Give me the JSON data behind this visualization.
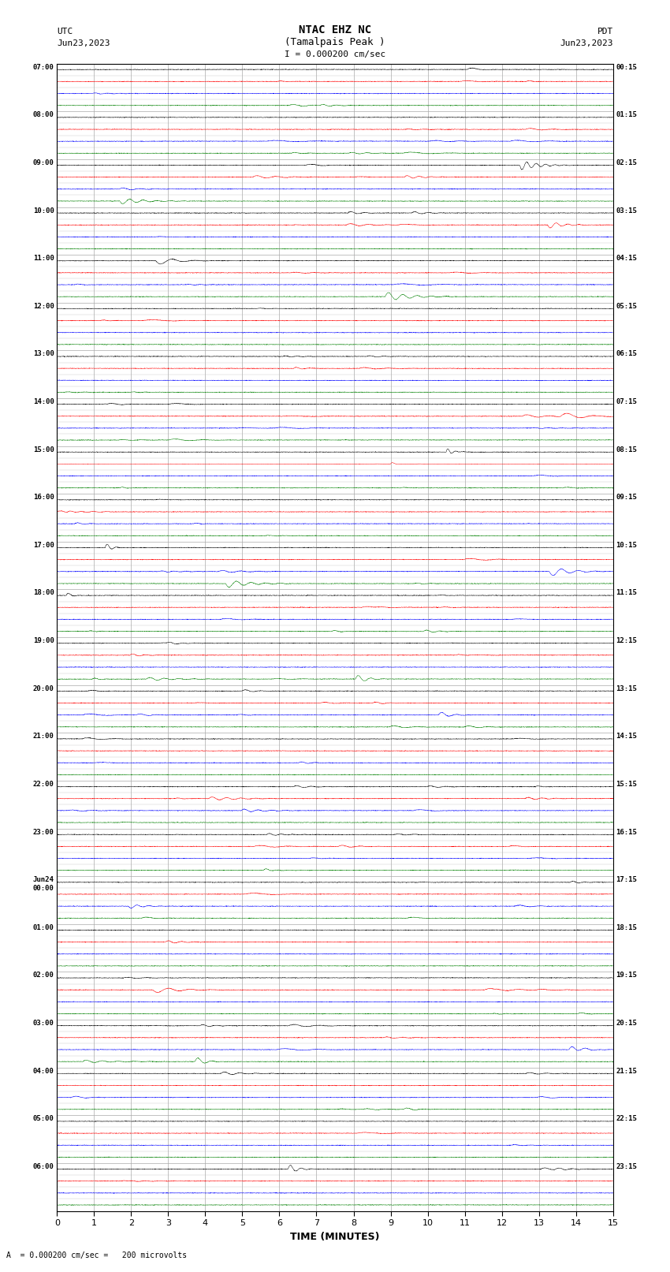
{
  "title_line1": "NTAC EHZ NC",
  "title_line2": "(Tamalpais Peak )",
  "title_line3": "I = 0.000200 cm/sec",
  "left_header_line1": "UTC",
  "left_header_line2": "Jun23,2023",
  "right_header_line1": "PDT",
  "right_header_line2": "Jun23,2023",
  "xlabel": "TIME (MINUTES)",
  "footer": "A  = 0.000200 cm/sec =   200 microvolts",
  "time_min": 0,
  "time_max": 15,
  "xticks": [
    0,
    1,
    2,
    3,
    4,
    5,
    6,
    7,
    8,
    9,
    10,
    11,
    12,
    13,
    14,
    15
  ],
  "figsize": [
    8.5,
    16.13
  ],
  "dpi": 100,
  "num_rows": 96,
  "colors_cycle": [
    "black",
    "red",
    "blue",
    "green"
  ],
  "left_labels": [
    "07:00",
    "",
    "",
    "",
    "08:00",
    "",
    "",
    "",
    "09:00",
    "",
    "",
    "",
    "10:00",
    "",
    "",
    "",
    "11:00",
    "",
    "",
    "",
    "12:00",
    "",
    "",
    "",
    "13:00",
    "",
    "",
    "",
    "14:00",
    "",
    "",
    "",
    "15:00",
    "",
    "",
    "",
    "16:00",
    "",
    "",
    "",
    "17:00",
    "",
    "",
    "",
    "18:00",
    "",
    "",
    "",
    "19:00",
    "",
    "",
    "",
    "20:00",
    "",
    "",
    "",
    "21:00",
    "",
    "",
    "",
    "22:00",
    "",
    "",
    "",
    "23:00",
    "",
    "",
    "",
    "Jun24\n00:00",
    "",
    "",
    "",
    "01:00",
    "",
    "",
    "",
    "02:00",
    "",
    "",
    "",
    "03:00",
    "",
    "",
    "",
    "04:00",
    "",
    "",
    "",
    "05:00",
    "",
    "",
    "",
    "06:00",
    "",
    "",
    ""
  ],
  "right_labels": [
    "00:15",
    "",
    "",
    "",
    "01:15",
    "",
    "",
    "",
    "02:15",
    "",
    "",
    "",
    "03:15",
    "",
    "",
    "",
    "04:15",
    "",
    "",
    "",
    "05:15",
    "",
    "",
    "",
    "06:15",
    "",
    "",
    "",
    "07:15",
    "",
    "",
    "",
    "08:15",
    "",
    "",
    "",
    "09:15",
    "",
    "",
    "",
    "10:15",
    "",
    "",
    "",
    "11:15",
    "",
    "",
    "",
    "12:15",
    "",
    "",
    "",
    "13:15",
    "",
    "",
    "",
    "14:15",
    "",
    "",
    "",
    "15:15",
    "",
    "",
    "",
    "16:15",
    "",
    "",
    "",
    "17:15",
    "",
    "",
    "",
    "18:15",
    "",
    "",
    "",
    "19:15",
    "",
    "",
    "",
    "20:15",
    "",
    "",
    "",
    "21:15",
    "",
    "",
    "",
    "22:15",
    "",
    "",
    "",
    "23:15",
    "",
    "",
    ""
  ],
  "bg_color": "white",
  "grid_color": "#aaaaaa"
}
